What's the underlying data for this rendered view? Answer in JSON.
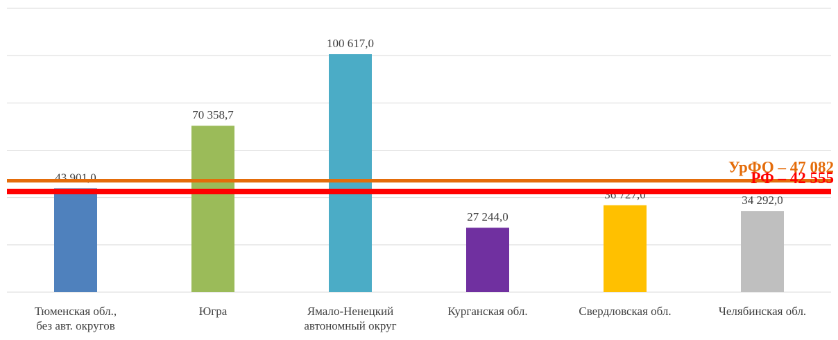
{
  "chart_data": {
    "type": "bar",
    "categories": [
      "Тюменская обл.,\nбез авт. округов",
      "Югра",
      "Ямало-Ненецкий\nавтономный округ",
      "Курганская обл.",
      "Свердловская обл.",
      "Челябинская обл."
    ],
    "values": [
      43901.0,
      70358.7,
      100617.0,
      27244.0,
      36727.0,
      34292.0
    ],
    "value_labels": [
      "43 901,0",
      "70 358,7",
      "100 617,0",
      "27 244,0",
      "36 727,0",
      "34 292,0"
    ],
    "colors": [
      "#4f81bd",
      "#9bbb59",
      "#4bacc6",
      "#7030a0",
      "#ffc000",
      "#bfbfbf"
    ],
    "ylim": [
      0,
      120000
    ],
    "yticks": [
      0,
      20000,
      40000,
      60000,
      80000,
      100000,
      120000
    ],
    "grid": true,
    "reference_lines": [
      {
        "value": 47082,
        "label": "УрФО – 47 082",
        "color": "#e46c0a"
      },
      {
        "value": 42555,
        "label": "РФ – 42 555",
        "color": "#ff0000"
      }
    ]
  }
}
